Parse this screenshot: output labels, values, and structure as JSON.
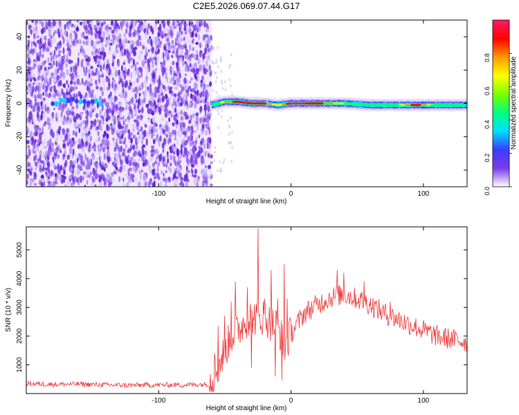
{
  "figure_title": "C2E5.2026.069.07.44.G17",
  "colors": {
    "snr_line": "#ee3333",
    "axis": "#000000",
    "spectrogram_noise": "#7a3ce8"
  },
  "chart_data": [
    {
      "type": "heatmap",
      "name": "spectrogram",
      "xlabel": "Height of straight line (km)",
      "ylabel": "Frequency (Hz)",
      "xlim": [
        -200,
        133
      ],
      "ylim": [
        -50,
        50
      ],
      "xticks": [
        -100,
        0,
        100
      ],
      "xtick_labels": [
        "-100",
        "0",
        "100"
      ],
      "yticks": [
        -40,
        -20,
        0,
        20,
        40
      ],
      "ytick_labels": [
        "-40",
        "-20",
        "0",
        "20",
        "40"
      ],
      "colorbar": {
        "label": "Normalized spectral amplitude",
        "range": [
          0,
          1
        ],
        "ticks": [
          0.0,
          0.2,
          0.4,
          0.6,
          0.8
        ],
        "tick_labels": [
          "0.0",
          "0.2",
          "0.4",
          "0.6",
          "0.8"
        ],
        "colormap": [
          "#ffffff",
          "#7a3ce8",
          "#3c3cff",
          "#00e0ff",
          "#00ff7f",
          "#7cff00",
          "#ffff00",
          "#ff9900",
          "#ff0000",
          "#ff1a66"
        ]
      },
      "noise_region_x": [
        -200,
        -60
      ],
      "signal_track": {
        "x": [
          -60,
          -50,
          -40,
          -30,
          -20,
          -10,
          0,
          10,
          20,
          40,
          60,
          80,
          95,
          110,
          133
        ],
        "frequency_hz": [
          -1,
          1,
          1,
          0,
          0,
          -1,
          0,
          0,
          0,
          0,
          -1,
          -1,
          -1,
          -1,
          -1
        ],
        "amplitude": [
          0.35,
          0.75,
          0.9,
          0.85,
          0.9,
          0.6,
          0.95,
          0.95,
          0.9,
          0.6,
          0.55,
          0.55,
          0.95,
          0.5,
          0.4
        ]
      }
    },
    {
      "type": "line",
      "name": "snr",
      "xlabel": "Height of straight line (km)",
      "ylabel": "SNR (10 * v/v)",
      "xlim": [
        -200,
        133
      ],
      "ylim": [
        0,
        5800
      ],
      "xticks": [
        -100,
        0,
        100
      ],
      "xtick_labels": [
        "-100",
        "0",
        "100"
      ],
      "yticks": [
        1000,
        2000,
        3000,
        4000,
        5000
      ],
      "ytick_labels": [
        "1000",
        "2000",
        "3000",
        "4000",
        "5000"
      ],
      "series": [
        {
          "name": "SNR",
          "x": [
            -200,
            -180,
            -160,
            -140,
            -120,
            -100,
            -80,
            -62,
            -55,
            -50,
            -45,
            -40,
            -35,
            -30,
            -25,
            -20,
            -15,
            -10,
            -5,
            0,
            10,
            20,
            30,
            40,
            50,
            60,
            70,
            80,
            90,
            100,
            110,
            120,
            133
          ],
          "y": [
            350,
            320,
            330,
            300,
            290,
            300,
            300,
            330,
            900,
            1500,
            2000,
            2200,
            2500,
            2700,
            2600,
            2700,
            2400,
            2400,
            1600,
            2100,
            2800,
            3100,
            3350,
            3450,
            3300,
            3100,
            2800,
            2600,
            2400,
            2200,
            2000,
            1900,
            1800
          ]
        }
      ],
      "spikes": [
        {
          "x": -58,
          "y": 1400
        },
        {
          "x": -55,
          "y": 2350
        },
        {
          "x": -50,
          "y": 2700
        },
        {
          "x": -45,
          "y": 3200
        },
        {
          "x": -42,
          "y": 3900
        },
        {
          "x": -33,
          "y": 3700
        },
        {
          "x": -30,
          "y": 3900
        },
        {
          "x": -25,
          "y": 5750
        },
        {
          "x": -20,
          "y": 3300
        },
        {
          "x": -15,
          "y": 4300
        },
        {
          "x": -10,
          "y": 3300
        },
        {
          "x": -5,
          "y": 4500
        },
        {
          "x": -3,
          "y": 3300
        },
        {
          "x": 35,
          "y": 4300
        },
        {
          "x": 40,
          "y": 4200
        },
        {
          "x": 55,
          "y": 3900
        },
        {
          "x": 75,
          "y": 3200
        }
      ],
      "dips": [
        {
          "x": -12,
          "y": 600
        },
        {
          "x": -7,
          "y": 450
        },
        {
          "x": -30,
          "y": 900
        }
      ]
    }
  ]
}
